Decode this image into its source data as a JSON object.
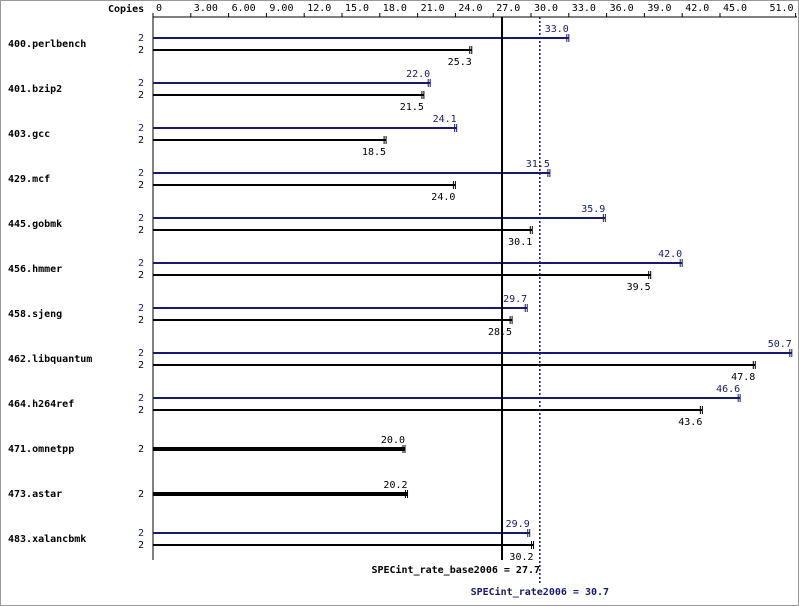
{
  "chart_data": {
    "type": "bar",
    "orientation": "horizontal",
    "axis_title": "Copies",
    "categories": [
      "400.perlbench",
      "401.bzip2",
      "403.gcc",
      "429.mcf",
      "445.gobmk",
      "456.hmmer",
      "458.sjeng",
      "462.libquantum",
      "464.h264ref",
      "471.omnetpp",
      "473.astar",
      "483.xalancbmk"
    ],
    "series": [
      {
        "color": "#191970",
        "copies": [
          2,
          2,
          2,
          2,
          2,
          2,
          2,
          2,
          2,
          null,
          null,
          2
        ],
        "values": [
          33.0,
          22.0,
          24.1,
          31.5,
          35.9,
          42.0,
          29.7,
          50.7,
          46.6,
          null,
          null,
          29.9
        ],
        "value_labels": [
          "33.0",
          "22.0",
          "24.1",
          "31.5",
          "35.9",
          "42.0",
          "29.7",
          "50.7",
          "46.6",
          null,
          null,
          "29.9"
        ]
      },
      {
        "color": "#000000",
        "copies": [
          2,
          2,
          2,
          2,
          2,
          2,
          2,
          2,
          2,
          2,
          2,
          2
        ],
        "values": [
          25.3,
          21.5,
          18.5,
          24.0,
          30.1,
          39.5,
          28.5,
          47.8,
          43.6,
          20.0,
          20.2,
          30.2
        ],
        "value_labels": [
          "25.3",
          "21.5",
          "18.5",
          "24.0",
          "30.1",
          "39.5",
          "28.5",
          "47.8",
          "43.6",
          "20.0",
          "20.2",
          "30.2"
        ]
      }
    ],
    "xlim": [
      0,
      51
    ],
    "xticks": [
      0,
      {
        "value": 3,
        "label": "3.00"
      },
      {
        "value": 6,
        "label": "6.00"
      },
      {
        "value": 9,
        "label": "9.00"
      },
      {
        "value": 12,
        "label": "12.0"
      },
      {
        "value": 15,
        "label": "15.0"
      },
      {
        "value": 18,
        "label": "18.0"
      },
      {
        "value": 21,
        "label": "21.0"
      },
      {
        "value": 24,
        "label": "24.0"
      },
      {
        "value": 27,
        "label": "27.0"
      },
      {
        "value": 30,
        "label": "30.0"
      },
      {
        "value": 33,
        "label": "33.0"
      },
      {
        "value": 36,
        "label": "36.0"
      },
      {
        "value": 39,
        "label": "39.0"
      },
      {
        "value": 42,
        "label": "42.0"
      },
      {
        "value": 45,
        "label": "45.0"
      },
      {
        "value": 51,
        "label": "51.0"
      }
    ],
    "reference_lines": [
      {
        "value": 27.7,
        "text": "SPECint_rate_base2006 = 27.7",
        "color": "#000000",
        "dashed": false
      },
      {
        "value": 30.7,
        "text": "SPECint_rate2006 = 30.7",
        "color": "#191970",
        "dashed": true
      }
    ]
  }
}
